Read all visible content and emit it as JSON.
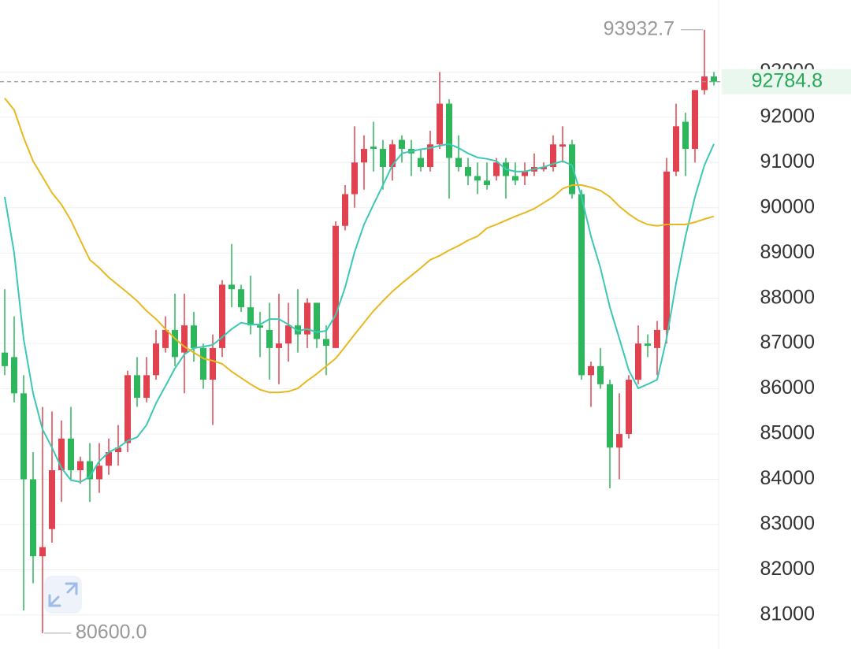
{
  "chart_data": {
    "type": "candlestick",
    "up_color": "#e0434f",
    "down_color": "#2eb65c",
    "open": [
      86800,
      86700,
      85900,
      84000,
      82300,
      82900,
      84200,
      84900,
      84200,
      84400,
      84000,
      84300,
      84600,
      84800,
      86300,
      85800,
      86300,
      86900,
      87300,
      86800,
      87400,
      86900,
      86200,
      86900,
      88300,
      88200,
      87800,
      87400,
      87300,
      86900,
      87000,
      87400,
      87200,
      87900,
      87100,
      86900,
      89600,
      90300,
      91000,
      91350,
      91300,
      90900,
      91500,
      91300,
      91100,
      90900,
      91400,
      92300,
      91100,
      90900,
      90700,
      90600,
      90700,
      91000,
      90700,
      90700,
      90800,
      90850,
      90900,
      91350,
      91400,
      90300,
      86300,
      86500,
      86100,
      84700,
      85000,
      86200,
      87000,
      86900,
      87300,
      90800,
      91900,
      91300,
      92600,
      92900
    ],
    "high": [
      88200,
      87600,
      86300,
      84600,
      85600,
      85500,
      85300,
      85600,
      84500,
      84800,
      84800,
      84900,
      85200,
      86400,
      86700,
      86700,
      87300,
      87600,
      88100,
      88100,
      87700,
      87000,
      87200,
      88400,
      89200,
      88300,
      88500,
      87700,
      87900,
      88100,
      87900,
      88200,
      88000,
      87900,
      87400,
      89700,
      90500,
      91800,
      91600,
      91900,
      91500,
      91500,
      91600,
      91500,
      91300,
      91700,
      93000,
      92400,
      91600,
      91100,
      91000,
      91000,
      91100,
      91100,
      91000,
      91000,
      91200,
      91000,
      91600,
      91800,
      91500,
      90400,
      86600,
      86900,
      86200,
      85900,
      86300,
      87400,
      87200,
      87500,
      91100,
      92300,
      92100,
      92600,
      93932.7,
      93000
    ],
    "low": [
      86300,
      85700,
      81100,
      81700,
      80600,
      82600,
      83500,
      84000,
      83900,
      83500,
      83700,
      84100,
      84300,
      84600,
      85600,
      85700,
      86200,
      86800,
      86500,
      85900,
      86600,
      86000,
      85200,
      86700,
      87800,
      87700,
      87200,
      86700,
      86200,
      86100,
      86600,
      86800,
      86900,
      86900,
      86300,
      86900,
      89500,
      90000,
      90400,
      90800,
      90400,
      90600,
      91000,
      90700,
      90800,
      90800,
      91300,
      90200,
      90800,
      90500,
      90300,
      90400,
      90600,
      90200,
      90500,
      90500,
      90700,
      90800,
      90800,
      91000,
      90200,
      86200,
      85600,
      86000,
      83800,
      84000,
      84900,
      86100,
      86700,
      86300,
      87000,
      90700,
      90700,
      91000,
      92500,
      92700
    ],
    "close": [
      86500,
      85900,
      84000,
      82300,
      82500,
      84200,
      84900,
      84200,
      84400,
      84000,
      84300,
      84600,
      84700,
      86300,
      85800,
      86300,
      87000,
      87300,
      86700,
      87400,
      86900,
      86200,
      86900,
      88300,
      88200,
      87800,
      87400,
      87350,
      86900,
      87000,
      87400,
      87200,
      87900,
      87100,
      86950,
      89600,
      90300,
      91000,
      91300,
      91300,
      90900,
      91400,
      91300,
      91200,
      90900,
      91400,
      92300,
      91100,
      90900,
      90700,
      90600,
      90500,
      91000,
      90700,
      90600,
      90800,
      90900,
      90900,
      91400,
      91400,
      90300,
      86300,
      86500,
      86100,
      84700,
      85000,
      86200,
      87000,
      86950,
      87300,
      90800,
      91800,
      91300,
      92600,
      92900,
      92784.8
    ],
    "moving_averages": [
      {
        "color": "#3cc8b4",
        "values": [
          90240,
          89000,
          87100,
          85900,
          85100,
          84700,
          84250,
          83980,
          83940,
          84060,
          84400,
          84600,
          84700,
          84850,
          84930,
          85200,
          85680,
          86060,
          86450,
          86760,
          86900,
          86930,
          86970,
          87140,
          87320,
          87460,
          87420,
          87420,
          87540,
          87540,
          87420,
          87280,
          87320,
          87250,
          87280,
          87630,
          88240,
          89020,
          89630,
          90070,
          90500,
          90940,
          91200,
          91250,
          91290,
          91320,
          91370,
          91410,
          91320,
          91200,
          91110,
          91080,
          91030,
          90850,
          90800,
          90800,
          90850,
          90900,
          90970,
          91030,
          90940,
          90240,
          89370,
          88670,
          87800,
          87110,
          86410,
          86010,
          86100,
          86200,
          87110,
          88330,
          89370,
          90240,
          90940,
          91410
        ]
      },
      {
        "color": "#e8b820",
        "values": [
          92420,
          92160,
          91550,
          91030,
          90680,
          90330,
          90070,
          89720,
          89280,
          88850,
          88670,
          88460,
          88290,
          88120,
          87940,
          87720,
          87540,
          87320,
          87110,
          86930,
          86800,
          86670,
          86620,
          86550,
          86380,
          86240,
          86100,
          85980,
          85920,
          85920,
          85940,
          86010,
          86180,
          86330,
          86500,
          86670,
          86930,
          87200,
          87460,
          87720,
          87940,
          88150,
          88330,
          88500,
          88670,
          88850,
          88940,
          89060,
          89160,
          89280,
          89370,
          89550,
          89630,
          89720,
          89810,
          89890,
          89980,
          90110,
          90240,
          90420,
          90500,
          90500,
          90450,
          90380,
          90240,
          90030,
          89860,
          89720,
          89630,
          89600,
          89630,
          89630,
          89630,
          89680,
          89750,
          89810
        ]
      }
    ],
    "high_label": 93932.7,
    "low_label": {
      "value": 80600,
      "label": "80600.0"
    },
    "last_price": 92784.8,
    "ylim": [
      80250,
      94590
    ],
    "yticks": [
      81000,
      82000,
      83000,
      84000,
      85000,
      86000,
      87000,
      88000,
      89000,
      90000,
      91000,
      92000,
      93000
    ],
    "grid": true
  }
}
